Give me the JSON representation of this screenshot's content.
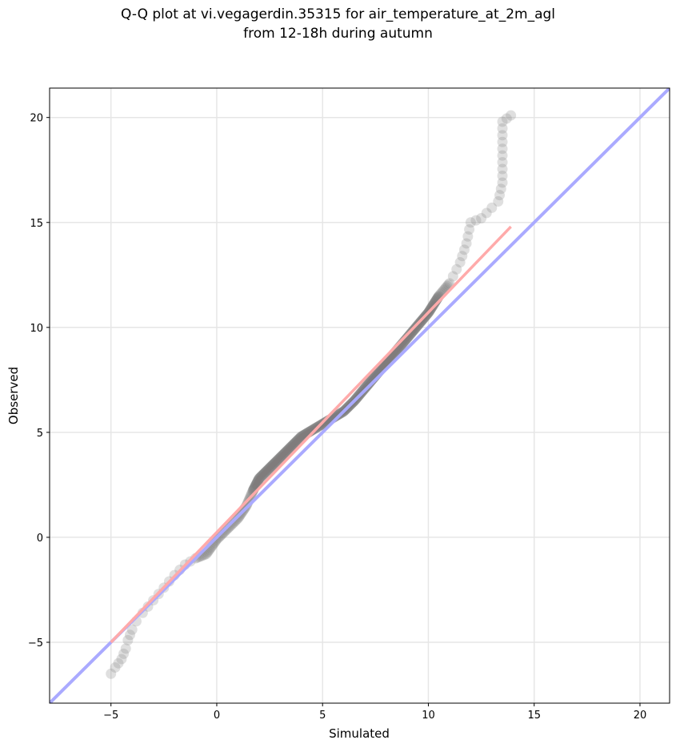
{
  "chart_data": {
    "type": "scatter",
    "title_line1": "Q-Q plot at vi.vegagerdin.35315 for air_temperature_at_2m_agl",
    "title_line2": "from 12-18h during autumn",
    "xlabel": "Simulated",
    "ylabel": "Observed",
    "xlim": [
      -7.9,
      21.4
    ],
    "ylim": [
      -7.9,
      21.4
    ],
    "xticks": [
      -5,
      0,
      5,
      10,
      15,
      20
    ],
    "yticks": [
      -5,
      0,
      5,
      10,
      15,
      20
    ],
    "xtick_labels": [
      "−5",
      "0",
      "5",
      "10",
      "15",
      "20"
    ],
    "ytick_labels": [
      "−5",
      "0",
      "5",
      "10",
      "15",
      "20"
    ],
    "grid": true,
    "colors": {
      "points": "#7f7f7f",
      "identity_line": "#aaaaff",
      "fit_line": "#ffaaaa",
      "dense_dark": "#000000",
      "dense_red": "#8b0000",
      "dense_blue": "#000080"
    },
    "quantile_curve": [
      [
        -5.0,
        -6.5
      ],
      [
        -4.8,
        -6.2
      ],
      [
        -4.5,
        -5.8
      ],
      [
        -4.3,
        -5.3
      ],
      [
        -4.2,
        -4.9
      ],
      [
        -4.0,
        -4.4
      ],
      [
        -3.8,
        -4.0
      ],
      [
        -3.5,
        -3.6
      ],
      [
        -3.0,
        -3.0
      ],
      [
        -2.5,
        -2.4
      ],
      [
        -2.0,
        -1.8
      ],
      [
        -1.5,
        -1.3
      ],
      [
        -1.0,
        -1.0
      ],
      [
        -0.5,
        -0.8
      ],
      [
        0.0,
        -0.1
      ],
      [
        0.5,
        0.4
      ],
      [
        1.0,
        0.9
      ],
      [
        1.4,
        1.5
      ],
      [
        1.7,
        2.2
      ],
      [
        2.0,
        2.8
      ],
      [
        2.5,
        3.3
      ],
      [
        3.0,
        3.8
      ],
      [
        3.5,
        4.3
      ],
      [
        4.0,
        4.8
      ],
      [
        4.5,
        5.1
      ],
      [
        5.0,
        5.4
      ],
      [
        5.5,
        5.7
      ],
      [
        6.0,
        6.0
      ],
      [
        6.5,
        6.5
      ],
      [
        7.0,
        7.1
      ],
      [
        7.5,
        7.7
      ],
      [
        8.0,
        8.3
      ],
      [
        8.5,
        8.9
      ],
      [
        9.0,
        9.5
      ],
      [
        9.5,
        10.1
      ],
      [
        10.0,
        10.7
      ],
      [
        10.5,
        11.5
      ],
      [
        11.0,
        12.1
      ],
      [
        11.5,
        13.1
      ],
      [
        11.8,
        14.0
      ],
      [
        12.0,
        15.0
      ],
      [
        12.5,
        15.2
      ],
      [
        13.0,
        15.7
      ],
      [
        13.3,
        16.0
      ],
      [
        13.5,
        16.9
      ],
      [
        13.5,
        19.8
      ],
      [
        13.9,
        20.1
      ]
    ],
    "fit_line": [
      [
        -5.0,
        -5.0
      ],
      [
        13.9,
        14.8
      ]
    ],
    "identity_line": [
      [
        -7.9,
        -7.9
      ],
      [
        21.4,
        21.4
      ]
    ]
  }
}
